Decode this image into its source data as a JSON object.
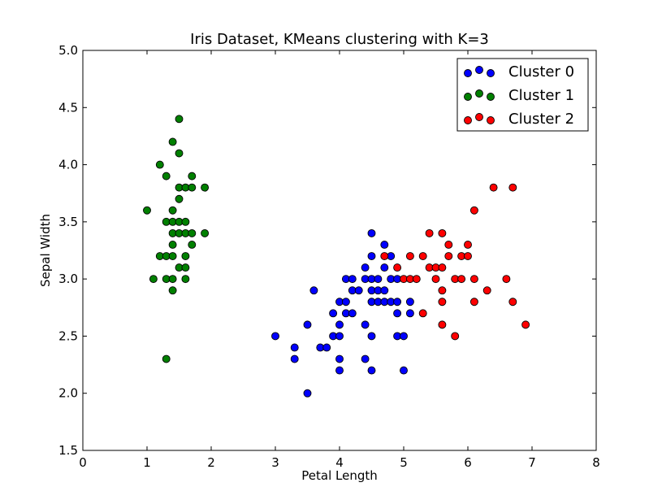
{
  "chart_data": {
    "type": "scatter",
    "title": "Iris Dataset, KMeans clustering with K=3",
    "xlabel": "Petal Length",
    "ylabel": "Sepal Width",
    "xlim": [
      0,
      8
    ],
    "ylim": [
      1.5,
      5.0
    ],
    "xticks": [
      0,
      1,
      2,
      3,
      4,
      5,
      6,
      7,
      8
    ],
    "xtick_labels": [
      "0",
      "1",
      "2",
      "3",
      "4",
      "5",
      "6",
      "7",
      "8"
    ],
    "yticks": [
      1.5,
      2.0,
      2.5,
      3.0,
      3.5,
      4.0,
      4.5,
      5.0
    ],
    "ytick_labels": [
      "1.5",
      "2.0",
      "2.5",
      "3.0",
      "3.5",
      "4.0",
      "4.5",
      "5.0"
    ],
    "grid": false,
    "legend_position": "top-right",
    "series": [
      {
        "name": "Cluster 0",
        "color": "#0000ff",
        "points": [
          [
            3.0,
            2.5
          ],
          [
            3.3,
            2.4
          ],
          [
            3.3,
            2.3
          ],
          [
            3.5,
            2.6
          ],
          [
            3.5,
            2.0
          ],
          [
            3.6,
            2.9
          ],
          [
            3.7,
            2.4
          ],
          [
            3.8,
            2.4
          ],
          [
            3.9,
            2.5
          ],
          [
            3.9,
            2.7
          ],
          [
            4.0,
            2.8
          ],
          [
            4.0,
            2.6
          ],
          [
            4.0,
            2.5
          ],
          [
            4.0,
            2.3
          ],
          [
            4.0,
            2.2
          ],
          [
            4.1,
            3.0
          ],
          [
            4.1,
            2.8
          ],
          [
            4.1,
            2.7
          ],
          [
            4.2,
            3.0
          ],
          [
            4.2,
            2.9
          ],
          [
            4.2,
            2.7
          ],
          [
            4.3,
            2.9
          ],
          [
            4.4,
            3.1
          ],
          [
            4.4,
            3.0
          ],
          [
            4.4,
            2.6
          ],
          [
            4.4,
            2.3
          ],
          [
            4.5,
            3.4
          ],
          [
            4.5,
            3.2
          ],
          [
            4.5,
            3.0
          ],
          [
            4.5,
            2.9
          ],
          [
            4.5,
            2.8
          ],
          [
            4.5,
            2.5
          ],
          [
            4.5,
            2.2
          ],
          [
            4.6,
            3.0
          ],
          [
            4.6,
            2.9
          ],
          [
            4.6,
            2.8
          ],
          [
            4.7,
            3.3
          ],
          [
            4.7,
            3.1
          ],
          [
            4.7,
            2.9
          ],
          [
            4.7,
            2.8
          ],
          [
            4.8,
            3.2
          ],
          [
            4.8,
            3.0
          ],
          [
            4.8,
            2.8
          ],
          [
            4.9,
            3.0
          ],
          [
            4.9,
            2.8
          ],
          [
            4.9,
            2.7
          ],
          [
            4.9,
            2.5
          ],
          [
            5.0,
            2.5
          ],
          [
            5.0,
            2.2
          ],
          [
            5.1,
            2.8
          ],
          [
            5.1,
            2.7
          ]
        ]
      },
      {
        "name": "Cluster 1",
        "color": "#008000",
        "points": [
          [
            1.0,
            3.6
          ],
          [
            1.1,
            3.0
          ],
          [
            1.2,
            4.0
          ],
          [
            1.2,
            3.2
          ],
          [
            1.3,
            3.9
          ],
          [
            1.3,
            3.5
          ],
          [
            1.3,
            3.2
          ],
          [
            1.3,
            3.0
          ],
          [
            1.3,
            2.3
          ],
          [
            1.4,
            4.2
          ],
          [
            1.4,
            3.6
          ],
          [
            1.4,
            3.5
          ],
          [
            1.4,
            3.4
          ],
          [
            1.4,
            3.3
          ],
          [
            1.4,
            3.2
          ],
          [
            1.4,
            3.0
          ],
          [
            1.4,
            2.9
          ],
          [
            1.5,
            4.4
          ],
          [
            1.5,
            4.1
          ],
          [
            1.5,
            3.8
          ],
          [
            1.5,
            3.7
          ],
          [
            1.5,
            3.5
          ],
          [
            1.5,
            3.4
          ],
          [
            1.5,
            3.1
          ],
          [
            1.6,
            3.8
          ],
          [
            1.6,
            3.5
          ],
          [
            1.6,
            3.4
          ],
          [
            1.6,
            3.2
          ],
          [
            1.6,
            3.1
          ],
          [
            1.6,
            3.0
          ],
          [
            1.7,
            3.9
          ],
          [
            1.7,
            3.8
          ],
          [
            1.7,
            3.4
          ],
          [
            1.7,
            3.3
          ],
          [
            1.9,
            3.8
          ],
          [
            1.9,
            3.4
          ]
        ]
      },
      {
        "name": "Cluster 2",
        "color": "#ff0000",
        "points": [
          [
            4.7,
            3.2
          ],
          [
            4.9,
            3.1
          ],
          [
            5.0,
            3.0
          ],
          [
            5.1,
            3.2
          ],
          [
            5.1,
            3.0
          ],
          [
            5.2,
            3.0
          ],
          [
            5.3,
            3.2
          ],
          [
            5.3,
            2.7
          ],
          [
            5.4,
            3.4
          ],
          [
            5.4,
            3.1
          ],
          [
            5.5,
            3.1
          ],
          [
            5.5,
            3.0
          ],
          [
            5.6,
            3.4
          ],
          [
            5.6,
            3.1
          ],
          [
            5.6,
            2.9
          ],
          [
            5.6,
            2.8
          ],
          [
            5.6,
            2.6
          ],
          [
            5.7,
            3.3
          ],
          [
            5.7,
            3.2
          ],
          [
            5.8,
            3.0
          ],
          [
            5.8,
            2.5
          ],
          [
            5.9,
            3.2
          ],
          [
            5.9,
            3.0
          ],
          [
            6.0,
            3.3
          ],
          [
            6.0,
            3.2
          ],
          [
            6.1,
            3.6
          ],
          [
            6.1,
            3.0
          ],
          [
            6.1,
            2.8
          ],
          [
            6.3,
            2.9
          ],
          [
            6.4,
            3.8
          ],
          [
            6.6,
            3.0
          ],
          [
            6.7,
            3.8
          ],
          [
            6.7,
            2.8
          ],
          [
            6.9,
            2.6
          ]
        ]
      }
    ]
  }
}
